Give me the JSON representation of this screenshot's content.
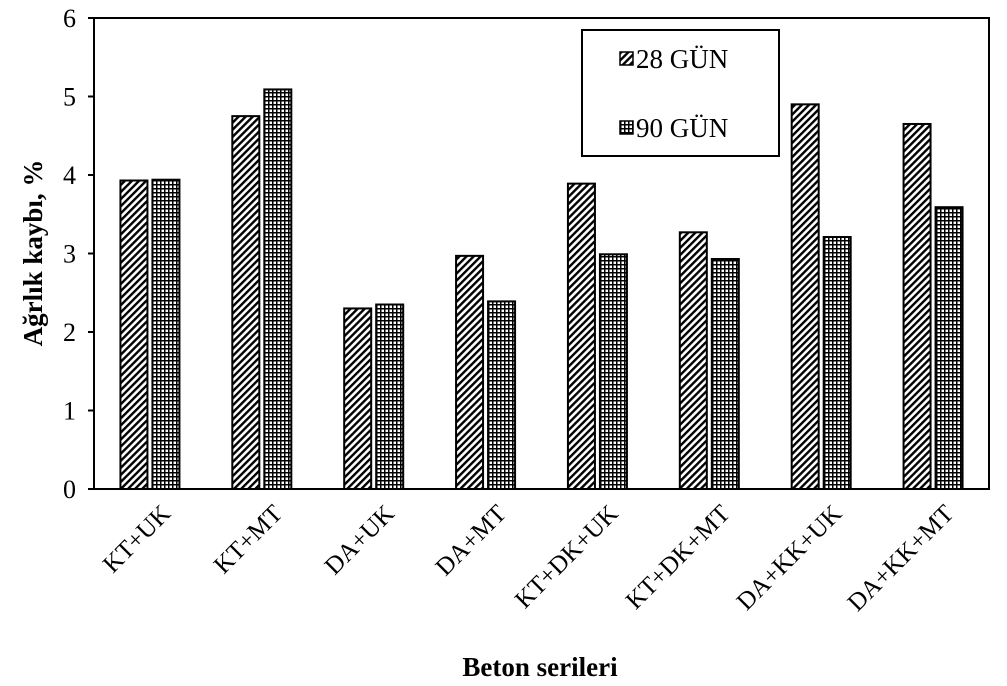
{
  "chart_data": {
    "type": "bar",
    "categories": [
      "KT+UK",
      "KT+MT",
      "DA+UK",
      "DA+MT",
      "KT+DK+UK",
      "KT+DK+MT",
      "DA+KK+UK",
      "DA+KK+MT"
    ],
    "series": [
      {
        "name": "28 GÜN",
        "pattern": "diagonal-hatch",
        "values": [
          3.93,
          4.75,
          2.3,
          2.97,
          3.89,
          3.27,
          4.9,
          4.65
        ]
      },
      {
        "name": "90 GÜN",
        "pattern": "dotted-grid",
        "values": [
          3.94,
          5.09,
          2.35,
          2.39,
          2.99,
          2.93,
          3.21,
          3.59
        ]
      }
    ],
    "xlabel": "Beton serileri",
    "ylabel": "Ağrlık kaybı, %",
    "ylim": [
      0,
      6
    ],
    "yticks": [
      "0",
      "1",
      "2",
      "3",
      "4",
      "5",
      "6"
    ],
    "grid": false,
    "legend_position": "top-right",
    "colors": {
      "bar_stroke": "#000000",
      "pattern_ink": "#000000",
      "background": "#ffffff"
    }
  }
}
